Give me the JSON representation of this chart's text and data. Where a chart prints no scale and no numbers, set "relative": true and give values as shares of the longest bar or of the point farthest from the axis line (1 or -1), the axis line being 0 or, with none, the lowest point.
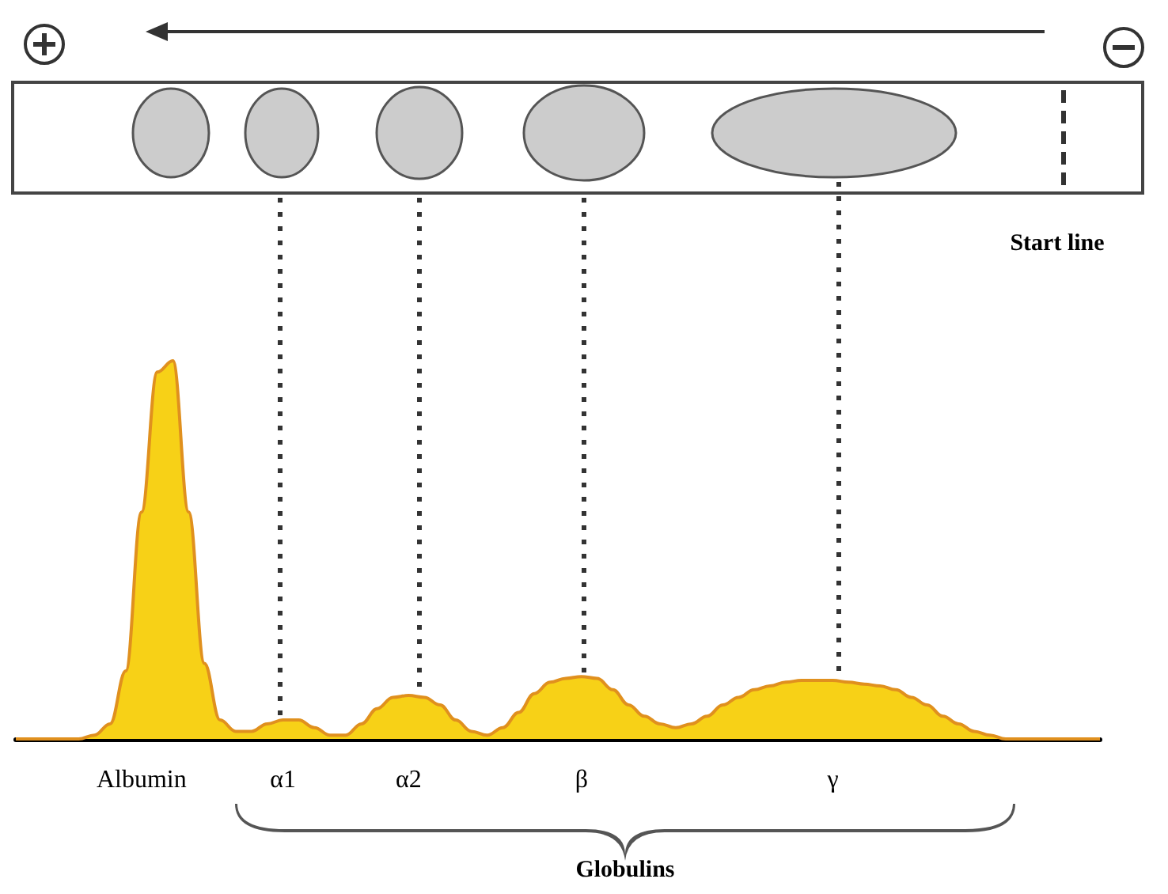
{
  "chart_data": {
    "type": "area",
    "relative": true,
    "color": "#f7d117",
    "categories": [
      null,
      null,
      null,
      null,
      null,
      null,
      null,
      null,
      "Albumin",
      null,
      null,
      null,
      null,
      null,
      null,
      null,
      null,
      "α1",
      null,
      null,
      null,
      null,
      null,
      null,
      null,
      "α2",
      null,
      null,
      null,
      null,
      null,
      null,
      null,
      null,
      null,
      null,
      "β",
      null,
      null,
      null,
      null,
      null,
      null,
      null,
      null,
      null,
      null,
      null,
      null,
      null,
      null,
      null,
      "γ",
      null,
      null,
      null,
      null,
      null,
      null,
      null,
      null,
      null,
      null,
      null,
      null,
      null,
      null,
      null,
      null,
      null
    ],
    "values": [
      0,
      0,
      0,
      0,
      0,
      0.01,
      0.04,
      0.18,
      0.6,
      0.97,
      1,
      0.6,
      0.2,
      0.05,
      0.02,
      0.02,
      0.04,
      0.05,
      0.05,
      0.03,
      0.01,
      0.01,
      0.04,
      0.08,
      0.11,
      0.115,
      0.11,
      0.09,
      0.05,
      0.02,
      0.01,
      0.03,
      0.07,
      0.12,
      0.15,
      0.16,
      0.165,
      0.16,
      0.13,
      0.09,
      0.06,
      0.04,
      0.03,
      0.04,
      0.06,
      0.09,
      0.11,
      0.13,
      0.14,
      0.15,
      0.155,
      0.155,
      0.155,
      0.15,
      0.145,
      0.14,
      0.13,
      0.11,
      0.09,
      0.06,
      0.04,
      0.02,
      0.01,
      0,
      0,
      0,
      0,
      0,
      0,
      0
    ],
    "annotations": [
      "Start line",
      "Globulins"
    ]
  }
}
